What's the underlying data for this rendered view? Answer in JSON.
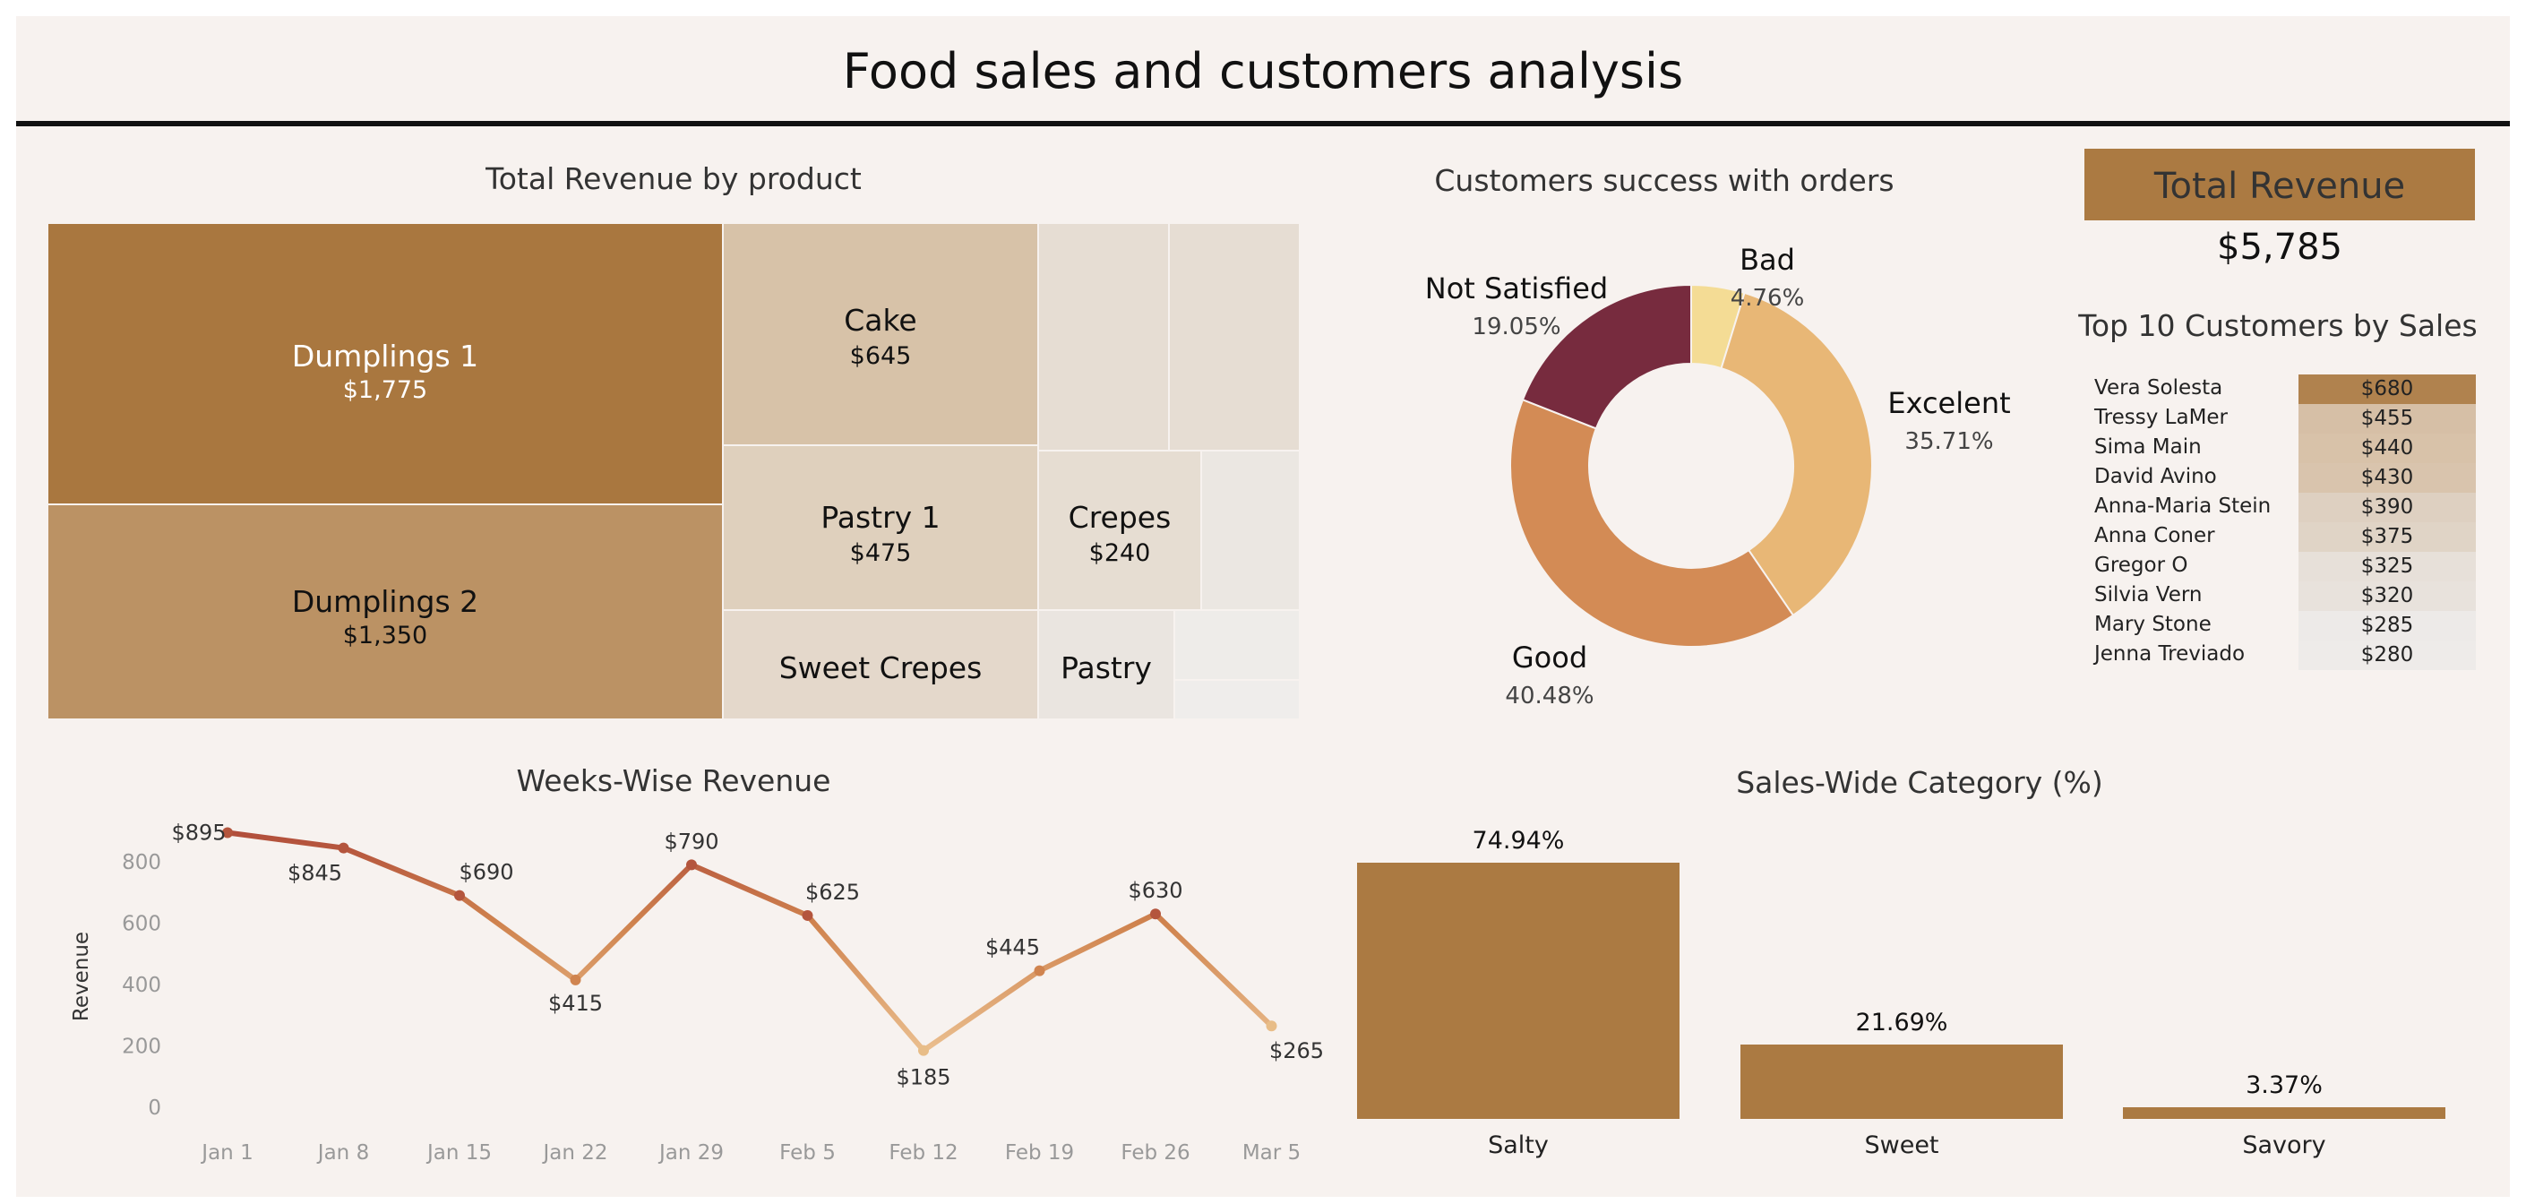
{
  "title": "Food sales and customers analysis",
  "treemap": {
    "title": "Total Revenue by product",
    "items": [
      {
        "label": "Dumplings 1",
        "value": "$1,775",
        "color": "#a9773f",
        "text_color": "#ffffff"
      },
      {
        "label": "Dumplings 2",
        "value": "$1,350",
        "color": "#bb9264",
        "text_color": "#111111"
      },
      {
        "label": "Cake",
        "value": "$645",
        "color": "#d7c2a8",
        "text_color": "#111111"
      },
      {
        "label": "Pastry 1",
        "value": "$475",
        "color": "#dfd0bd",
        "text_color": "#111111"
      },
      {
        "label": "Sweet Crepes",
        "value": "",
        "color": "#e4d8cb",
        "text_color": "#111111"
      },
      {
        "label": "Crepes",
        "value": "$240",
        "color": "#e6ddd2",
        "text_color": "#111111"
      },
      {
        "label": "Pastry",
        "value": "",
        "color": "#eae5e0",
        "text_color": "#111111"
      }
    ],
    "filler_colors": [
      "#e6ddd3",
      "#e6ddd3",
      "#ebe7e2",
      "#eeece9",
      "#efedeb"
    ]
  },
  "donut": {
    "title": "Customers success with orders",
    "slices": [
      {
        "label": "Bad",
        "pct": "4.76%",
        "value": 4.76,
        "color": "#f4dc95"
      },
      {
        "label": "Excelent",
        "pct": "35.71%",
        "value": 35.71,
        "color": "#e8b776"
      },
      {
        "label": "Good",
        "pct": "40.48%",
        "value": 40.48,
        "color": "#d38b55"
      },
      {
        "label": "Not Satisfied",
        "pct": "19.05%",
        "value": 19.05,
        "color": "#772b3e"
      }
    ]
  },
  "kpi": {
    "label": "Total Revenue",
    "value": "$5,785",
    "color": "#ab7a42"
  },
  "top_customers": {
    "title": "Top 10 Customers by Sales",
    "rows": [
      {
        "name": "Vera Solesta",
        "value": "$680",
        "color": "#b0824e"
      },
      {
        "name": "Tressy LaMer",
        "value": "$455",
        "color": "#d6bfa6"
      },
      {
        "name": "Sima Main",
        "value": "$440",
        "color": "#d8c2a9"
      },
      {
        "name": "David Avino",
        "value": "$430",
        "color": "#d9c4ad"
      },
      {
        "name": "Anna-Maria Stein",
        "value": "$390",
        "color": "#ded0c1"
      },
      {
        "name": "Anna Coner",
        "value": "$375",
        "color": "#e0d4c6"
      },
      {
        "name": "Gregor O",
        "value": "$325",
        "color": "#e7e0d9"
      },
      {
        "name": "Silvia Vern",
        "value": "$320",
        "color": "#e8e2dc"
      },
      {
        "name": "Mary Stone",
        "value": "$285",
        "color": "#edeae8"
      },
      {
        "name": "Jenna Treviado",
        "value": "$280",
        "color": "#eeebe9"
      }
    ]
  },
  "chart_data": [
    {
      "type": "line",
      "title": "Weeks-Wise Revenue",
      "xlabel": "",
      "ylabel": "Revenue",
      "x": [
        "Jan 1",
        "Jan 8",
        "Jan 15",
        "Jan 22",
        "Jan 29",
        "Feb 5",
        "Feb 12",
        "Feb 19",
        "Feb 26",
        "Mar 5"
      ],
      "values": [
        895,
        845,
        690,
        415,
        790,
        625,
        185,
        445,
        630,
        265
      ],
      "labels": [
        "$895",
        "$845",
        "$690",
        "$415",
        "$790",
        "$625",
        "$185",
        "$445",
        "$630",
        "$265"
      ],
      "yticks": [
        0,
        200,
        400,
        600,
        800
      ],
      "ylim": [
        0,
        900
      ],
      "grid": false
    },
    {
      "type": "bar",
      "title": "Sales-Wide Category (%)",
      "categories": [
        "Salty",
        "Sweet",
        "Savory"
      ],
      "values": [
        74.94,
        21.69,
        3.37
      ],
      "labels": [
        "74.94%",
        "21.69%",
        "3.37%"
      ],
      "color": "#ab7a42"
    }
  ]
}
